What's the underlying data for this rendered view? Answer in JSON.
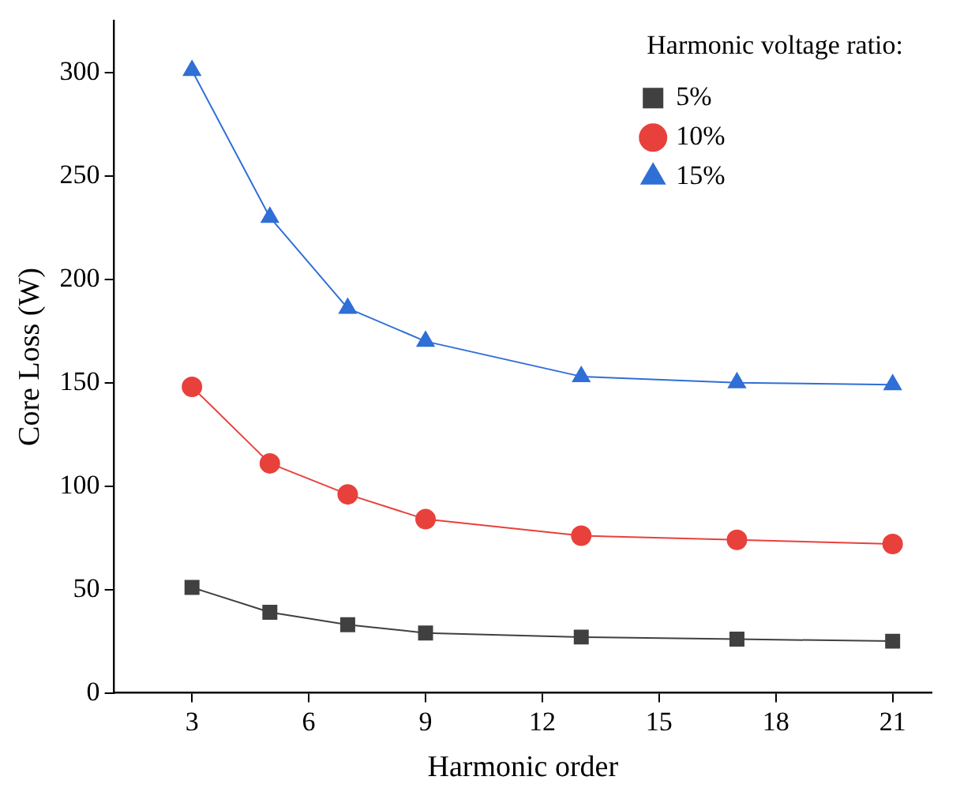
{
  "chart_data": {
    "type": "line",
    "xlabel": "Harmonic order",
    "ylabel": "Core Loss (W)",
    "legend_title": "Harmonic voltage ratio:",
    "legend": "top right",
    "grid": false,
    "x": [
      3,
      5,
      7,
      9,
      13,
      17,
      21
    ],
    "xlim": [
      1,
      22
    ],
    "xticks": [
      3,
      6,
      9,
      12,
      15,
      18,
      21
    ],
    "ylim": [
      0,
      325
    ],
    "yticks": [
      0,
      50,
      100,
      150,
      200,
      250,
      300
    ],
    "series": [
      {
        "name": "5%",
        "color": "#404040",
        "marker": "square",
        "values": [
          51,
          39,
          33,
          29,
          27,
          26,
          25
        ]
      },
      {
        "name": "10%",
        "color": "#e8413c",
        "marker": "circle",
        "values": [
          148,
          111,
          96,
          84,
          76,
          74,
          72
        ]
      },
      {
        "name": "15%",
        "color": "#2f6fd6",
        "marker": "triangle",
        "values": [
          301,
          230,
          186,
          170,
          153,
          150,
          149
        ]
      }
    ]
  }
}
